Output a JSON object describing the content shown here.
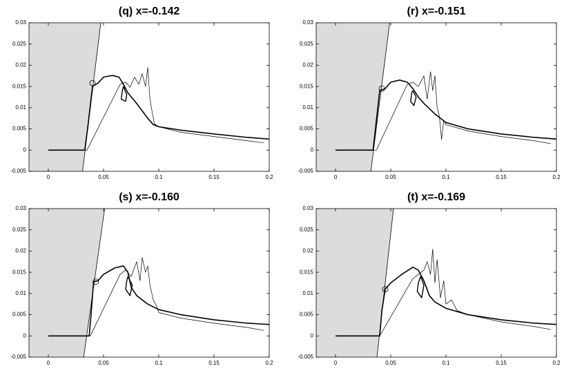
{
  "chart_data": [
    {
      "type": "line",
      "title": "(q) x=-0.142",
      "xlim": [
        -0.0175,
        0.2
      ],
      "ylim": [
        -0.005,
        0.03
      ],
      "xticks": [
        0,
        0.05,
        0.1,
        0.15,
        0.2
      ],
      "yticks": [
        -0.005,
        0,
        0.005,
        0.01,
        0.015,
        0.02,
        0.025,
        0.03
      ],
      "shade": {
        "x": [
          0.031,
          0.0475
        ],
        "y": [
          -0.005,
          0.03
        ],
        "color": "#dcdcdc"
      },
      "marker": {
        "x": 0.04,
        "y": 0.0158
      },
      "series": [
        {
          "color": "#000000",
          "width": 1.6,
          "x": [
            0,
            0.033,
            0.036,
            0.04,
            0.045,
            0.05,
            0.058,
            0.064,
            0.068,
            0.072,
            0.08,
            0.09,
            0.095,
            0.1,
            0.12,
            0.15,
            0.18,
            0.2
          ],
          "values": [
            0,
            0,
            0.006,
            0.015,
            0.0158,
            0.0172,
            0.0176,
            0.0172,
            0.0155,
            0.0135,
            0.011,
            0.0075,
            0.006,
            0.0055,
            0.0047,
            0.0038,
            0.003,
            0.0026
          ]
        },
        {
          "color": "#000000",
          "width": 0.7,
          "x": [
            0,
            0.035,
            0.065,
            0.07,
            0.074,
            0.078,
            0.082,
            0.085,
            0.088,
            0.09,
            0.092,
            0.094,
            0.096,
            0.1,
            0.12,
            0.15,
            0.18,
            0.195
          ],
          "values": [
            0,
            0,
            0.0155,
            0.016,
            0.0148,
            0.0172,
            0.0155,
            0.018,
            0.015,
            0.0195,
            0.012,
            0.009,
            0.0062,
            0.0055,
            0.0042,
            0.0032,
            0.0022,
            0.0017
          ]
        },
        {
          "color": "#000000",
          "width": 1.4,
          "x": [
            0.068,
            0.071,
            0.07,
            0.066,
            0.067,
            0.068
          ],
          "values": [
            0.015,
            0.013,
            0.0115,
            0.012,
            0.014,
            0.015
          ]
        }
      ]
    },
    {
      "type": "line",
      "title": "(r) x=-0.151",
      "xlim": [
        -0.0175,
        0.2
      ],
      "ylim": [
        -0.005,
        0.03
      ],
      "xticks": [
        0,
        0.05,
        0.1,
        0.15,
        0.2
      ],
      "yticks": [
        -0.005,
        0,
        0.005,
        0.01,
        0.015,
        0.02,
        0.025,
        0.03
      ],
      "shade": {
        "x": [
          0.032,
          0.049
        ],
        "y": [
          -0.005,
          0.03
        ],
        "color": "#dcdcdc"
      },
      "marker": {
        "x": 0.042,
        "y": 0.0145
      },
      "series": [
        {
          "color": "#000000",
          "width": 1.6,
          "x": [
            0,
            0.034,
            0.037,
            0.04,
            0.045,
            0.05,
            0.058,
            0.065,
            0.07,
            0.075,
            0.08,
            0.09,
            0.1,
            0.12,
            0.15,
            0.18,
            0.2
          ],
          "values": [
            0,
            0,
            0.007,
            0.014,
            0.0145,
            0.016,
            0.0165,
            0.016,
            0.0145,
            0.0125,
            0.011,
            0.0085,
            0.0065,
            0.005,
            0.0038,
            0.003,
            0.0026
          ]
        },
        {
          "color": "#000000",
          "width": 0.7,
          "x": [
            0,
            0.037,
            0.065,
            0.07,
            0.075,
            0.08,
            0.083,
            0.086,
            0.088,
            0.09,
            0.092,
            0.094,
            0.096,
            0.098,
            0.1,
            0.12,
            0.15,
            0.18,
            0.195
          ],
          "values": [
            0,
            0,
            0.0155,
            0.016,
            0.015,
            0.0175,
            0.012,
            0.0185,
            0.014,
            0.0175,
            0.01,
            0.008,
            0.0025,
            0.007,
            0.006,
            0.0045,
            0.0032,
            0.0022,
            0.0015
          ]
        },
        {
          "color": "#000000",
          "width": 1.4,
          "x": [
            0.07,
            0.073,
            0.071,
            0.068,
            0.069,
            0.07
          ],
          "values": [
            0.014,
            0.0125,
            0.0105,
            0.0115,
            0.0135,
            0.014
          ]
        }
      ]
    },
    {
      "type": "line",
      "title": "(s) x=-0.160",
      "xlim": [
        -0.0175,
        0.2
      ],
      "ylim": [
        -0.005,
        0.03
      ],
      "xticks": [
        0,
        0.05,
        0.1,
        0.15,
        0.2
      ],
      "yticks": [
        -0.005,
        0,
        0.005,
        0.01,
        0.015,
        0.02,
        0.025,
        0.03
      ],
      "shade": {
        "x": [
          0.032,
          0.051
        ],
        "y": [
          -0.005,
          0.03
        ],
        "color": "#dcdcdc"
      },
      "marker": {
        "x": 0.043,
        "y": 0.0128
      },
      "series": [
        {
          "color": "#000000",
          "width": 1.6,
          "x": [
            0,
            0.037,
            0.039,
            0.041,
            0.045,
            0.05,
            0.06,
            0.068,
            0.072,
            0.075,
            0.08,
            0.09,
            0.1,
            0.12,
            0.15,
            0.18,
            0.2
          ],
          "values": [
            0,
            0,
            0.006,
            0.0128,
            0.013,
            0.0145,
            0.016,
            0.0165,
            0.015,
            0.0115,
            0.0095,
            0.0075,
            0.0062,
            0.005,
            0.0038,
            0.003,
            0.0027
          ]
        },
        {
          "color": "#000000",
          "width": 0.7,
          "x": [
            0,
            0.038,
            0.065,
            0.07,
            0.075,
            0.08,
            0.083,
            0.085,
            0.088,
            0.09,
            0.092,
            0.095,
            0.098,
            0.1,
            0.12,
            0.15,
            0.18,
            0.195
          ],
          "values": [
            0,
            0,
            0.0145,
            0.0155,
            0.014,
            0.0175,
            0.013,
            0.0185,
            0.015,
            0.0165,
            0.012,
            0.0085,
            0.007,
            0.0055,
            0.0042,
            0.003,
            0.002,
            0.0013
          ]
        },
        {
          "color": "#000000",
          "width": 1.4,
          "x": [
            0.072,
            0.076,
            0.074,
            0.07,
            0.071,
            0.072
          ],
          "values": [
            0.014,
            0.012,
            0.0095,
            0.011,
            0.013,
            0.014
          ]
        }
      ]
    },
    {
      "type": "line",
      "title": "(t) x=-0.169",
      "xlim": [
        -0.0175,
        0.2
      ],
      "ylim": [
        -0.005,
        0.03
      ],
      "xticks": [
        0,
        0.05,
        0.1,
        0.15,
        0.2
      ],
      "yticks": [
        -0.005,
        0,
        0.005,
        0.01,
        0.015,
        0.02,
        0.025,
        0.03
      ],
      "shade": {
        "x": [
          0.0375,
          0.0525
        ],
        "y": [
          -0.005,
          0.03
        ],
        "color": "#dcdcdc"
      },
      "marker": {
        "x": 0.045,
        "y": 0.011
      },
      "series": [
        {
          "color": "#000000",
          "width": 1.6,
          "x": [
            0,
            0.04,
            0.042,
            0.045,
            0.05,
            0.06,
            0.07,
            0.075,
            0.08,
            0.085,
            0.09,
            0.1,
            0.12,
            0.15,
            0.18,
            0.2
          ],
          "values": [
            0,
            0,
            0.006,
            0.011,
            0.0125,
            0.0145,
            0.0162,
            0.0155,
            0.013,
            0.0095,
            0.008,
            0.0065,
            0.005,
            0.0038,
            0.003,
            0.0027
          ]
        },
        {
          "color": "#000000",
          "width": 0.7,
          "x": [
            0,
            0.04,
            0.07,
            0.075,
            0.08,
            0.083,
            0.086,
            0.088,
            0.09,
            0.092,
            0.095,
            0.098,
            0.1,
            0.105,
            0.11,
            0.12,
            0.15,
            0.18,
            0.195
          ],
          "values": [
            0,
            0,
            0.0135,
            0.0145,
            0.0155,
            0.0175,
            0.0145,
            0.0205,
            0.0125,
            0.018,
            0.009,
            0.013,
            0.0075,
            0.0085,
            0.006,
            0.005,
            0.0033,
            0.0022,
            0.0015
          ]
        },
        {
          "color": "#000000",
          "width": 1.4,
          "x": [
            0.077,
            0.08,
            0.078,
            0.074,
            0.075,
            0.077
          ],
          "values": [
            0.014,
            0.012,
            0.009,
            0.0105,
            0.0125,
            0.014
          ]
        }
      ]
    }
  ]
}
